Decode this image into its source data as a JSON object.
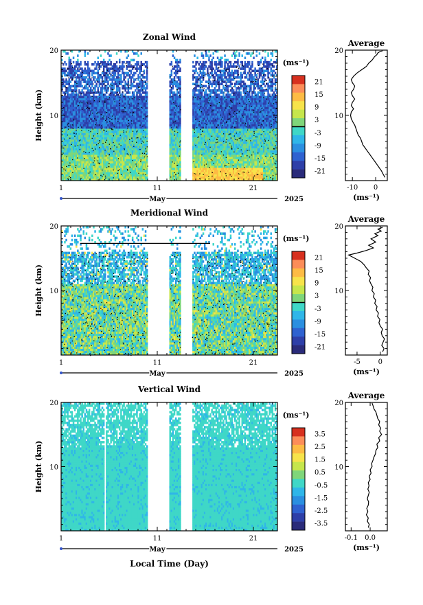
{
  "chart_data": [
    {
      "type": "heatmap",
      "title": "Zonal Wind",
      "ylabel": "Height (km)",
      "xlabel": "",
      "x_tick_labels": [
        "1",
        "11",
        "21"
      ],
      "y_tick_labels": [
        "10",
        "20"
      ],
      "month_label": "May",
      "year_label": "2025",
      "xlim": [
        1,
        23.5
      ],
      "ylim": [
        0,
        20
      ],
      "colorbar": {
        "unit": "(ms⁻¹)",
        "min": -24,
        "max": 24,
        "tick_labels": [
          "21",
          "15",
          "9",
          "3",
          "-3",
          "-9",
          "-15",
          "-21"
        ],
        "tick_values": [
          21,
          15,
          9,
          3,
          -3,
          -9,
          -15,
          -21
        ],
        "colors": [
          "#d7301f",
          "#fc8d59",
          "#fdbb44",
          "#f7e34a",
          "#c6e64c",
          "#7fd67a",
          "#3fd7c7",
          "#2fb6e8",
          "#2b8fe0",
          "#2f62d0",
          "#2e3fa8",
          "#2a2b7a"
        ],
        "zero_marker": 0
      },
      "gaps": [
        [
          10.0,
          12.3
        ],
        [
          13.4,
          14.6
        ]
      ],
      "profile": {
        "title": "Average",
        "xlabel": "(ms⁻¹)",
        "x_tick_labels": [
          "-10",
          "0"
        ],
        "x_tick_values": [
          -10,
          0
        ],
        "xlim": [
          -13,
          5
        ],
        "y_tick_labels": [
          "10",
          "20"
        ],
        "points": [
          [
            4.0,
            0.5
          ],
          [
            3.2,
            1
          ],
          [
            2.5,
            1.5
          ],
          [
            1.5,
            2
          ],
          [
            0.5,
            2.5
          ],
          [
            -0.5,
            3
          ],
          [
            -1.5,
            3.5
          ],
          [
            -2.5,
            4
          ],
          [
            -3.5,
            4.5
          ],
          [
            -4.5,
            5
          ],
          [
            -5.5,
            5.5
          ],
          [
            -6,
            6
          ],
          [
            -6.5,
            6.5
          ],
          [
            -7.5,
            7
          ],
          [
            -8,
            7.5
          ],
          [
            -8.5,
            8
          ],
          [
            -9,
            8.5
          ],
          [
            -9.8,
            9
          ],
          [
            -10.5,
            9.5
          ],
          [
            -10.8,
            10
          ],
          [
            -10.5,
            10.5
          ],
          [
            -9.5,
            11
          ],
          [
            -10.5,
            11.5
          ],
          [
            -10,
            12
          ],
          [
            -9,
            12.5
          ],
          [
            -10,
            13
          ],
          [
            -10.5,
            13.5
          ],
          [
            -9.5,
            14
          ],
          [
            -9,
            14.5
          ],
          [
            -10,
            15
          ],
          [
            -10.5,
            15.5
          ],
          [
            -9.5,
            16
          ],
          [
            -8,
            16.5
          ],
          [
            -6,
            17
          ],
          [
            -4,
            17.5
          ],
          [
            -3,
            18
          ],
          [
            -1.5,
            18.5
          ],
          [
            -0.5,
            19
          ],
          [
            0.5,
            19.3
          ],
          [
            1,
            19.6
          ],
          [
            2,
            19.8
          ],
          [
            3,
            19.9
          ]
        ]
      }
    },
    {
      "type": "heatmap",
      "title": "Meridional Wind",
      "ylabel": "Height (km)",
      "xlabel": "",
      "x_tick_labels": [
        "1",
        "11",
        "21"
      ],
      "y_tick_labels": [
        "10",
        "20"
      ],
      "month_label": "May",
      "year_label": "2025",
      "xlim": [
        1,
        23.5
      ],
      "ylim": [
        0,
        20
      ],
      "colorbar": {
        "unit": "(ms⁻¹)",
        "min": -24,
        "max": 24,
        "tick_labels": [
          "21",
          "15",
          "9",
          "3",
          "-3",
          "-9",
          "-15",
          "-21"
        ],
        "tick_values": [
          21,
          15,
          9,
          3,
          -3,
          -9,
          -15,
          -21
        ],
        "colors": [
          "#d7301f",
          "#fc8d59",
          "#fdbb44",
          "#f7e34a",
          "#c6e64c",
          "#7fd67a",
          "#3fd7c7",
          "#2fb6e8",
          "#2b8fe0",
          "#2f62d0",
          "#2e3fa8",
          "#2a2b7a"
        ],
        "zero_marker": 0
      },
      "gaps": [
        [
          10.0,
          12.3
        ],
        [
          13.4,
          14.6
        ]
      ],
      "profile": {
        "title": "Average",
        "xlabel": "(ms⁻¹)",
        "x_tick_labels": [
          "-5",
          "0"
        ],
        "x_tick_values": [
          -5,
          0
        ],
        "xlim": [
          -7.5,
          1.5
        ],
        "y_tick_labels": [
          "10",
          "20"
        ],
        "points": [
          [
            0.5,
            0.5
          ],
          [
            0.8,
            1
          ],
          [
            0.3,
            1.5
          ],
          [
            0.6,
            2
          ],
          [
            0.9,
            2.5
          ],
          [
            0.4,
            3
          ],
          [
            0.2,
            3.5
          ],
          [
            0.5,
            4
          ],
          [
            0.0,
            4.5
          ],
          [
            -0.3,
            5
          ],
          [
            -0.1,
            5.5
          ],
          [
            -0.6,
            6
          ],
          [
            -0.4,
            6.5
          ],
          [
            -0.9,
            7
          ],
          [
            -0.7,
            7.5
          ],
          [
            -1.2,
            8
          ],
          [
            -1.0,
            8.5
          ],
          [
            -1.5,
            9
          ],
          [
            -1.3,
            9.5
          ],
          [
            -1.8,
            10
          ],
          [
            -1.6,
            10.5
          ],
          [
            -2.0,
            11
          ],
          [
            -2.3,
            11.5
          ],
          [
            -2.1,
            12
          ],
          [
            -2.6,
            12.5
          ],
          [
            -2.4,
            13
          ],
          [
            -3.0,
            13.5
          ],
          [
            -3.5,
            14
          ],
          [
            -4.2,
            14.5
          ],
          [
            -5.5,
            15
          ],
          [
            -6.8,
            15.5
          ],
          [
            -5,
            15.8
          ],
          [
            -3,
            16.2
          ],
          [
            -1.5,
            16.6
          ],
          [
            -2.5,
            17
          ],
          [
            -1,
            17.5
          ],
          [
            -2,
            18
          ],
          [
            -0.5,
            18.5
          ],
          [
            -1.2,
            18.8
          ],
          [
            0.2,
            19.2
          ],
          [
            -0.5,
            19.5
          ],
          [
            0.5,
            19.8
          ]
        ]
      }
    },
    {
      "type": "heatmap",
      "title": "Vertical Wind",
      "ylabel": "Height (km)",
      "xlabel": "Local Time (Day)",
      "x_tick_labels": [
        "1",
        "11",
        "21"
      ],
      "y_tick_labels": [
        "10",
        "20"
      ],
      "month_label": "May",
      "year_label": "2025",
      "xlim": [
        1,
        23.5
      ],
      "ylim": [
        0,
        20
      ],
      "colorbar": {
        "unit": "(ms⁻¹)",
        "min": -4,
        "max": 4,
        "tick_labels": [
          "3.5",
          "2.5",
          "1.5",
          "0.5",
          "-0.5",
          "-1.5",
          "-2.5",
          "-3.5"
        ],
        "tick_values": [
          3.5,
          2.5,
          1.5,
          0.5,
          -0.5,
          -1.5,
          -2.5,
          -3.5
        ],
        "colors": [
          "#d7301f",
          "#fc8d59",
          "#fdbb44",
          "#f7e34a",
          "#c6e64c",
          "#7fd67a",
          "#3fd7c7",
          "#2fb6e8",
          "#2b8fe0",
          "#2f62d0",
          "#2e3fa8",
          "#2a2b7a"
        ],
        "zero_marker": null
      },
      "gaps": [
        [
          5.5,
          5.7
        ],
        [
          10.0,
          12.3
        ],
        [
          13.4,
          14.6
        ]
      ],
      "profile": {
        "title": "Average",
        "xlabel": "(ms⁻¹)",
        "x_tick_labels": [
          "-0.1",
          "0.0"
        ],
        "x_tick_values": [
          -0.1,
          0.0
        ],
        "xlim": [
          -0.13,
          0.09
        ],
        "y_tick_labels": [
          "10",
          "20"
        ],
        "points": [
          [
            -0.01,
            0.5
          ],
          [
            -0.005,
            1
          ],
          [
            -0.015,
            1.5
          ],
          [
            -0.01,
            2
          ],
          [
            -0.02,
            2.5
          ],
          [
            -0.012,
            3
          ],
          [
            -0.018,
            3.5
          ],
          [
            -0.01,
            4
          ],
          [
            -0.008,
            4.5
          ],
          [
            -0.015,
            5
          ],
          [
            -0.01,
            5.5
          ],
          [
            -0.005,
            6
          ],
          [
            -0.012,
            6.5
          ],
          [
            -0.006,
            7
          ],
          [
            -0.01,
            7.5
          ],
          [
            0.0,
            8
          ],
          [
            -0.005,
            8.5
          ],
          [
            0.005,
            9
          ],
          [
            0.0,
            9.5
          ],
          [
            0.01,
            10
          ],
          [
            0.008,
            10.5
          ],
          [
            0.015,
            11
          ],
          [
            0.02,
            11.5
          ],
          [
            0.028,
            12
          ],
          [
            0.03,
            12.5
          ],
          [
            0.04,
            13
          ],
          [
            0.035,
            13.5
          ],
          [
            0.05,
            14
          ],
          [
            0.045,
            14.5
          ],
          [
            0.06,
            15
          ],
          [
            0.05,
            15.5
          ],
          [
            0.055,
            16
          ],
          [
            0.045,
            16.5
          ],
          [
            0.05,
            17
          ],
          [
            0.04,
            17.5
          ],
          [
            0.035,
            18
          ],
          [
            0.03,
            18.5
          ],
          [
            0.02,
            19
          ],
          [
            0.015,
            19.5
          ],
          [
            0.01,
            19.9
          ]
        ]
      }
    }
  ]
}
